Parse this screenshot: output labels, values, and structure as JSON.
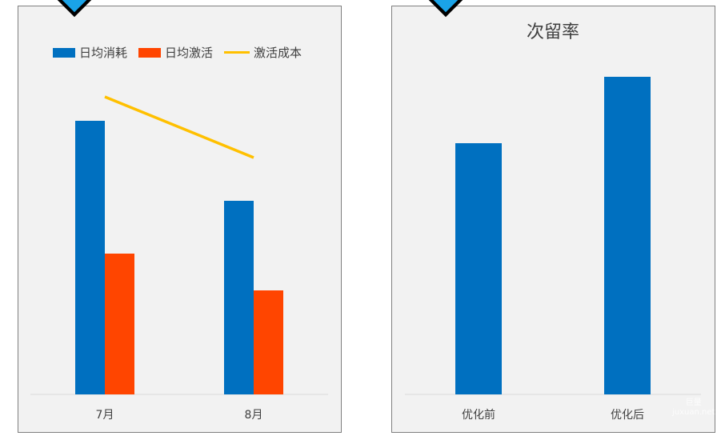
{
  "colors": {
    "blue": "#0070c0",
    "orange": "#ff4500",
    "yellow": "#ffc000",
    "axis": "#d9d9d9",
    "text": "#404040"
  },
  "chart_data": [
    {
      "type": "bar",
      "title": "",
      "categories": [
        "7月",
        "8月"
      ],
      "series": [
        {
          "name": "日均消耗",
          "kind": "bar",
          "values": [
            342,
            242
          ]
        },
        {
          "name": "日均激活",
          "kind": "bar",
          "values": [
            176,
            130
          ]
        },
        {
          "name": "激活成本",
          "kind": "line",
          "values": [
            372,
            296
          ]
        }
      ],
      "ylim": [
        0,
        400
      ],
      "grid": false,
      "legend": "top",
      "yaxis_shown": false
    },
    {
      "type": "bar",
      "title": "次留率",
      "categories": [
        "优化前",
        "优化后"
      ],
      "values": [
        314,
        397
      ],
      "ylim": [
        0,
        400
      ],
      "grid": false,
      "yaxis_shown": false
    }
  ],
  "watermark": {
    "line1": "巨量",
    "line2": "juxuan.net"
  }
}
